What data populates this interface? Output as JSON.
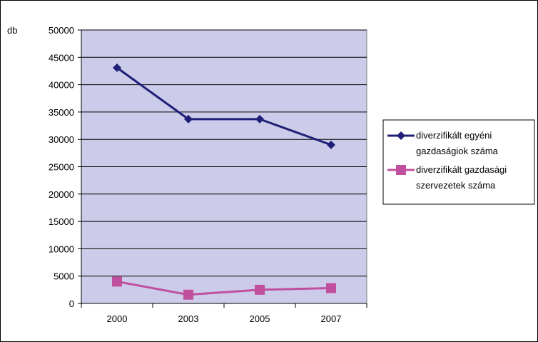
{
  "chart_data": {
    "type": "line",
    "title": "",
    "ylabel": "db",
    "xlabel": "",
    "categories": [
      "2000",
      "2003",
      "2005",
      "2007"
    ],
    "ylim": [
      0,
      50000
    ],
    "yticks": [
      "0",
      "5000",
      "10000",
      "15000",
      "20000",
      "25000",
      "30000",
      "35000",
      "40000",
      "45000",
      "50000"
    ],
    "grid": true,
    "legend_position": "right",
    "plot_background": "#ccccea",
    "series": [
      {
        "name_lines": [
          "diverzifikált egyéni",
          "gazdaságiok száma"
        ],
        "values": [
          43100,
          33700,
          33700,
          29000
        ],
        "color": "#1f1f78",
        "marker": "diamond"
      },
      {
        "name_lines": [
          "diverzifikált gazdasági",
          "szervezetek száma"
        ],
        "values": [
          4000,
          1600,
          2500,
          2800
        ],
        "color": "#c0509e",
        "marker": "square"
      }
    ]
  }
}
